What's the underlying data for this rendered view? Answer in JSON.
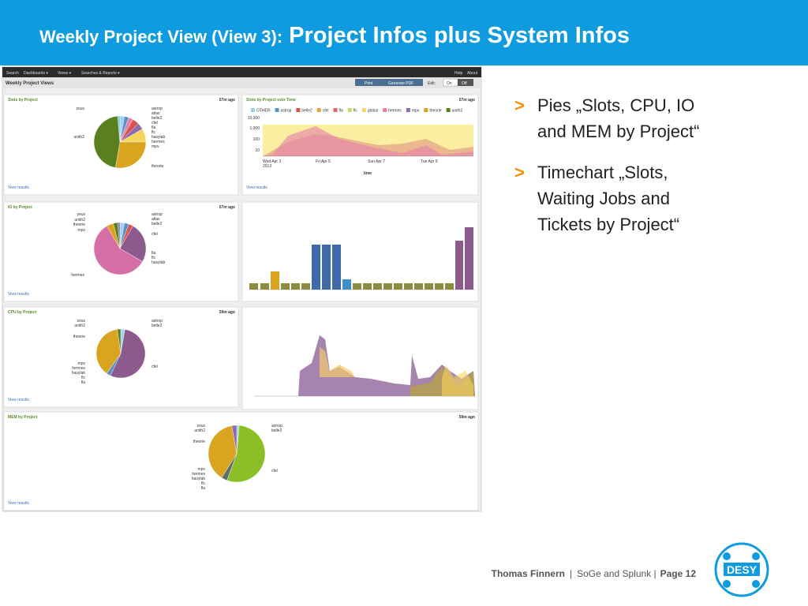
{
  "header": {
    "title_prefix": "Weekly Project View (View 3):",
    "title_main": "Project Infos plus System Infos"
  },
  "screenshot": {
    "nav_left": [
      "Search",
      "Dashboards ▾",
      "Views ▾",
      "Searches & Reports ▾"
    ],
    "nav_right": [
      "Help",
      "About"
    ],
    "view_title": "Weekly Project Views",
    "print": "Print",
    "pdf": "Generate PDF",
    "edit": "Edit:",
    "on": "On",
    "off": "Off",
    "panels": [
      {
        "title": "Slots by Project",
        "age": "57m ago",
        "link": "View results",
        "labels": [
          "zeus",
          "unith2",
          "astrop",
          "atlas",
          "belle2",
          "cfel",
          "fla",
          "flc",
          "hasylab",
          "hermes",
          "mpv",
          "theorie"
        ]
      },
      {
        "title": "Slots by Project over Time",
        "age": "57m ago",
        "link": "View results",
        "legend": [
          {
            "name": "OTHER",
            "color": "#9fd3e8"
          },
          {
            "name": "astrop",
            "color": "#5b8fc9"
          },
          {
            "name": "belle2",
            "color": "#d9534f"
          },
          {
            "name": "cfel",
            "color": "#e6a23c"
          },
          {
            "name": "fla",
            "color": "#e06666"
          },
          {
            "name": "flc",
            "color": "#c5d86d"
          },
          {
            "name": "global",
            "color": "#f6d55c"
          },
          {
            "name": "hermes",
            "color": "#e57fa8"
          },
          {
            "name": "mpv",
            "color": "#8e6bb0"
          },
          {
            "name": "theorie",
            "color": "#d9a520"
          },
          {
            "name": "unith2",
            "color": "#5a7f1e"
          }
        ],
        "yticks": [
          "10,000",
          "1,000",
          "100",
          "10"
        ],
        "xticks": [
          "Wed Apr 3",
          "Fri Apr 5",
          "Sun Apr 7",
          "Tue Apr 9"
        ],
        "year": "2013",
        "xlabel": "_time"
      },
      {
        "title": "IO by Project",
        "age": "57m ago",
        "link": "View results",
        "labels": [
          "zeus",
          "unith2",
          "theorie",
          "mpv",
          "astrop",
          "atlas",
          "belle2",
          "cfel",
          "fla",
          "flc",
          "hasylab",
          "hermes"
        ]
      },
      {
        "title": "CPU by Project",
        "age": "59m ago",
        "link": "View results",
        "labels": [
          "zeus",
          "unith2",
          "theorie",
          "mpv",
          "hermes",
          "hasylab",
          "flc",
          "fla",
          "astrop",
          "belle2",
          "cfel"
        ]
      },
      {
        "title": "MEM by Project",
        "age": "59m ago",
        "link": "View results",
        "labels": [
          "zeus",
          "unith2",
          "theorie",
          "mpv",
          "hermes",
          "hasylab",
          "flc",
          "fla",
          "astrop",
          "belle2",
          "cfel"
        ]
      }
    ]
  },
  "bullets": [
    [
      "Pies „Slots, CPU, IO",
      "and MEM by Project“"
    ],
    [
      "Timechart „Slots,",
      "Waiting Jobs and",
      "Tickets by Project“"
    ]
  ],
  "bullet_marker": ">",
  "footer": {
    "author": "Thomas Finnern",
    "sep": "|",
    "talk": "SoGe and Splunk |",
    "page": "Page 12"
  },
  "logo": "DESY"
}
